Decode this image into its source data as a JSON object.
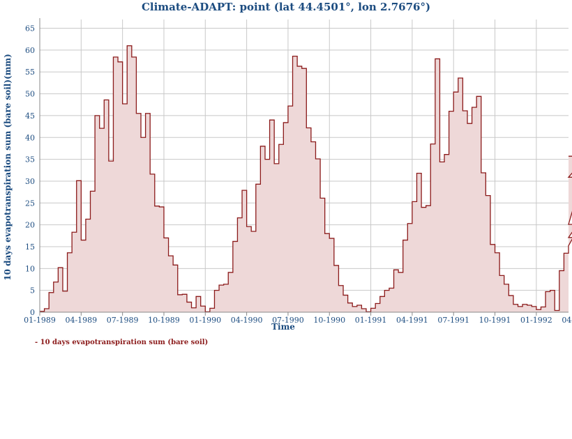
{
  "chart_data": {
    "type": "area",
    "title": "Climate-ADAPT: point (lat 44.4501°, lon 2.7676°)",
    "xlabel": "Time",
    "ylabel": "10 days evapotranspiration sum (bare soil)(mm)",
    "ylim": [
      0,
      67
    ],
    "yticks": [
      0,
      5,
      10,
      15,
      20,
      25,
      30,
      35,
      40,
      45,
      50,
      55,
      60,
      65
    ],
    "xticks": [
      "01-1989",
      "04-1989",
      "07-1989",
      "10-1989",
      "01-1990",
      "04-1990",
      "07-1990",
      "10-1990",
      "01-1991",
      "04-1991",
      "07-1991",
      "10-1991",
      "01-1992",
      "04-1992"
    ],
    "x_period": "10-day intervals starting 01-1989",
    "grid": true,
    "step": true,
    "legend": {
      "position": "bottom-left",
      "label": "- 10 days evapotranspiration sum (bare soil)"
    },
    "colors": {
      "line": "#8b1a1a",
      "fill": "#eed8d8",
      "text": "#1c4c80"
    },
    "series": [
      {
        "name": "10 days evapotranspiration sum (bare soil)",
        "values": [
          0.2,
          0.8,
          4.5,
          6.9,
          10.2,
          4.8,
          13.6,
          18.3,
          30.1,
          16.5,
          21.3,
          27.7,
          45.0,
          42.1,
          48.6,
          34.6,
          58.4,
          57.3,
          47.7,
          61.0,
          58.4,
          45.5,
          40.0,
          45.5,
          31.6,
          24.3,
          24.1,
          17.0,
          12.9,
          10.8,
          4.0,
          4.1,
          2.3,
          1.0,
          3.6,
          1.4,
          0.1,
          0.9,
          5.0,
          6.2,
          6.4,
          9.1,
          16.2,
          21.6,
          27.9,
          19.6,
          18.5,
          29.3,
          38.0,
          35.0,
          44.0,
          34.0,
          38.4,
          43.4,
          47.2,
          58.6,
          56.3,
          55.8,
          42.2,
          39.0,
          35.1,
          26.1,
          18.0,
          16.9,
          10.7,
          6.1,
          3.9,
          2.1,
          1.3,
          1.6,
          0.8,
          0.1,
          0.9,
          2.0,
          3.6,
          5.0,
          5.5,
          9.7,
          9.1,
          16.5,
          20.3,
          25.3,
          31.8,
          24.0,
          24.4,
          38.5,
          58.0,
          34.4,
          36.1,
          46.0,
          50.4,
          53.6,
          46.1,
          43.2,
          46.9,
          49.4,
          31.9,
          26.7,
          15.5,
          13.6,
          8.4,
          6.4,
          3.8,
          1.8,
          1.3,
          1.8,
          1.6,
          1.3,
          0.6,
          1.2,
          4.7,
          5.0,
          0.4,
          9.5,
          13.5,
          15.2,
          17.1,
          20.1,
          30.9,
          35.7
        ]
      }
    ]
  }
}
